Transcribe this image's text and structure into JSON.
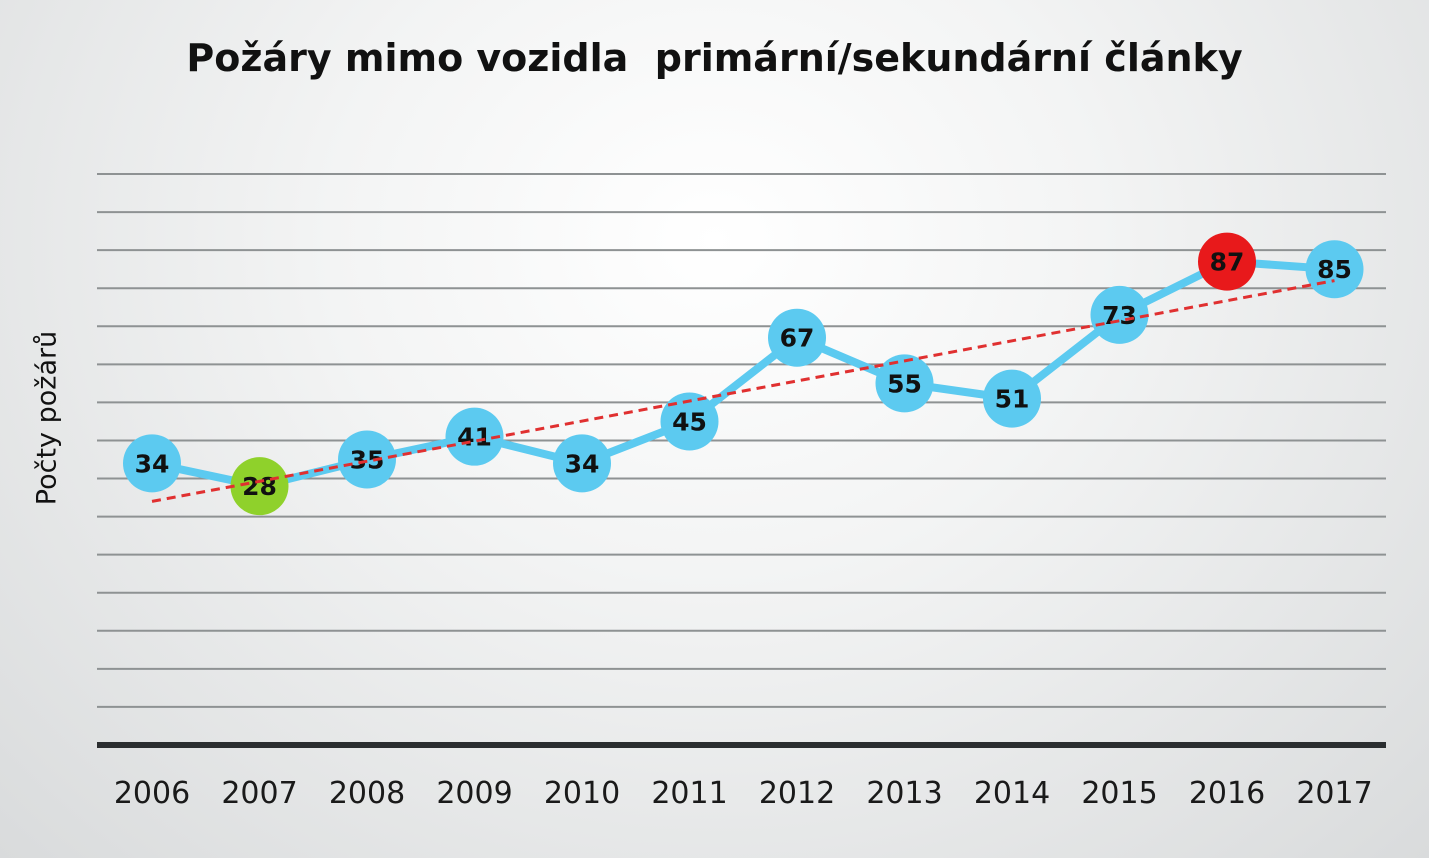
{
  "chart_data": {
    "type": "line",
    "title": "Požáry mimo vozidla  primární/sekundární články",
    "xlabel": "",
    "ylabel": "Počty požárů",
    "categories": [
      "2006",
      "2007",
      "2008",
      "2009",
      "2010",
      "2011",
      "2012",
      "2013",
      "2014",
      "2015",
      "2016",
      "2017"
    ],
    "series": [
      {
        "values": [
          34,
          28,
          35,
          41,
          34,
          45,
          67,
          55,
          51,
          73,
          87,
          85
        ]
      }
    ],
    "trendline": {
      "type": "linear",
      "style": "dashed",
      "color": "#e03030",
      "from": 24,
      "to": 82
    },
    "highlights": {
      "min_color": "#8fd12b",
      "max_color": "#e8191b"
    },
    "colors": {
      "line": "#5ccaf0",
      "marker": "#5ccaf0"
    },
    "ylim": [
      -40,
      115
    ],
    "ygrid_step": 10,
    "grid": true,
    "legend": "none"
  }
}
